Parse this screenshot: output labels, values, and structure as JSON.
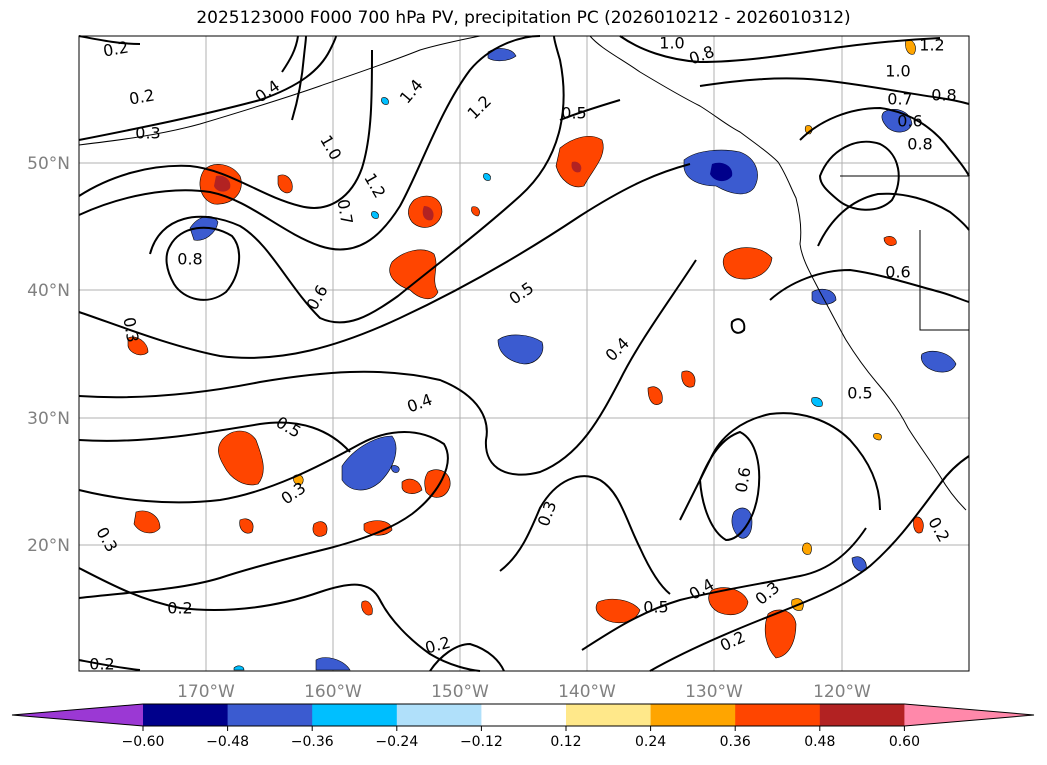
{
  "title": "2025123000 F000 700 hPa PV, precipitation PC (2026010212 - 2026010312)",
  "lat_labels": [
    "50°N",
    "40°N",
    "30°N",
    "20°N"
  ],
  "lon_labels": [
    "170°W",
    "160°W",
    "150°W",
    "140°W",
    "130°W",
    "120°W"
  ],
  "contour_labels": [
    "0.2",
    "0.2",
    "0.3",
    "0.4",
    "0.8",
    "1.0",
    "1.2",
    "1.4",
    "1.2",
    "0.5",
    "1.0",
    "0.8",
    "1.2",
    "1.0",
    "0.7",
    "0.8",
    "0.6",
    "0.8",
    "0.7",
    "0.6",
    "0.5",
    "0.4",
    "0.4",
    "0.3",
    "0.5",
    "0.3",
    "0.3",
    "0.3",
    "0.6",
    "0.4",
    "0.3",
    "0.5",
    "0.2",
    "0.2",
    "0.2",
    "0.2",
    "0.6",
    "0.5",
    "0.2"
  ],
  "colorbar": {
    "ticks": [
      "−0.60",
      "−0.48",
      "−0.36",
      "−0.24",
      "−0.12",
      "0.12",
      "0.24",
      "0.36",
      "0.48",
      "0.60"
    ],
    "colors": [
      "#9b38d4",
      "#00008b",
      "#3b5bd0",
      "#00bfff",
      "#b0e0fa",
      "#ffffff",
      "#ffe88a",
      "#ffa500",
      "#ff4500",
      "#b22222",
      "#ff88aa"
    ]
  }
}
